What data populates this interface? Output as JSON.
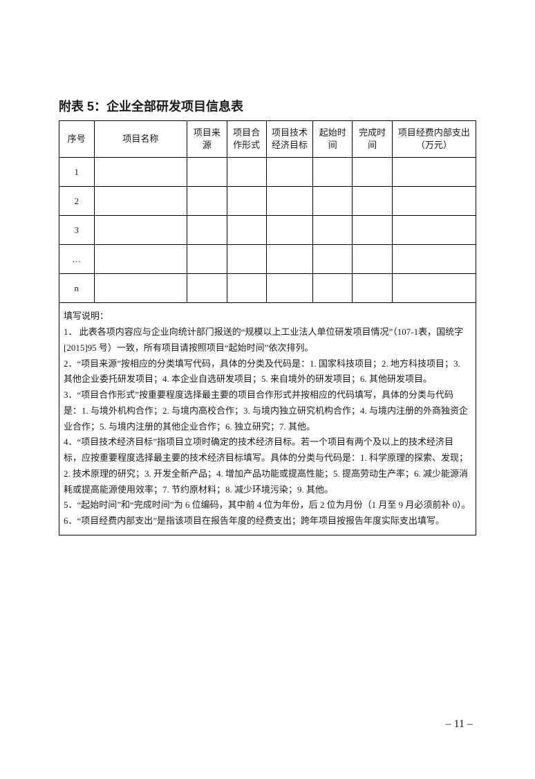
{
  "title": "附表 5：企业全部研发项目信息表",
  "columns": {
    "seq": "序号",
    "name": "项目名称",
    "source": "项目来源",
    "coop": "项目合作形式",
    "tech": "项目技术经济目标",
    "start": "起始时间",
    "end": "完成时间",
    "cost": "项目经费内部支出（万元）"
  },
  "rows": {
    "r1": "1",
    "r2": "2",
    "r3": "3",
    "r4": "…",
    "r5": "n"
  },
  "notes": {
    "heading": "填写说明：",
    "n1": "1． 此表各项内容应与企业向统计部门报送的“规模以上工业法人单位研发项目情况”（107-1表，国统字[2015]95 号）一致，所有项目请按照项目“起始时间”依次排列。",
    "n2": "2．“项目来源”按相应的分类填写代码，具体的分类及代码是：1. 国家科技项目；2. 地方科技项目；3. 其他企业委托研发项目；4. 本企业自选研发项目；5. 来自境外的研发项目；6. 其他研发项目。",
    "n3": "3．“项目合作形式”按重要程度选择最主要的项目合作形式并按相应的代码填写，具体的分类与代码是：1. 与境外机构合作；2. 与境内高校合作；3. 与境内独立研究机构合作；4. 与境内注册的外商独资企业合作；5. 与境内注册的其他企业合作；6. 独立研究；7. 其他。",
    "n4": "4．“项目技术经济目标”指项目立项时确定的技术经济目标。若一个项目有两个及以上的技术经济目标，应按重要程度选择最主要的技术经济目标填写。具体的分类与代码是：1. 科学原理的探索、发现；2. 技术原理的研究；3. 开发全新产品；4. 增加产品功能或提高性能；5. 提高劳动生产率；6. 减少能源消耗或提高能源使用效率；7. 节约原材料；8. 减少环境污染；9. 其他。",
    "n5": "5．“起始时间”和“完成时间”为 6 位编码，其中前 4 位为年份，后 2 位为月份（1 月至 9 月必须前补 0）。",
    "n6": "6．“项目经费内部支出”是指该项目在报告年度的经费支出；跨年项目按报告年度实际支出填写。"
  },
  "page_number": "– 11 –"
}
